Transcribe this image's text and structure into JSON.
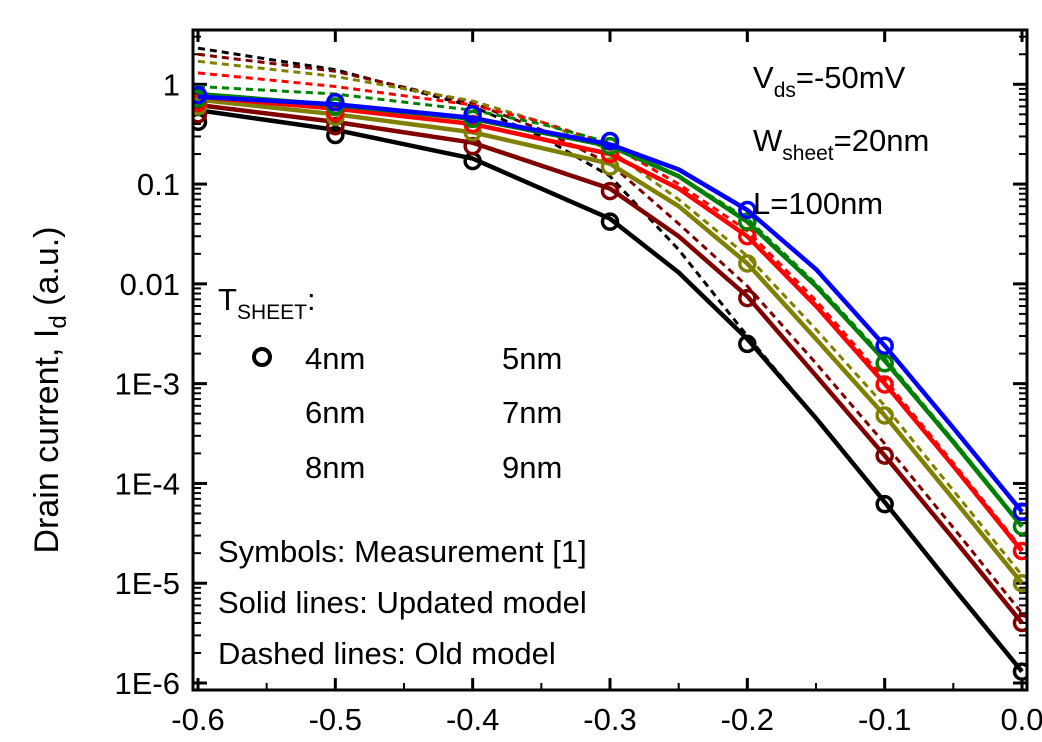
{
  "chart_data": {
    "type": "line",
    "title": "",
    "xlabel": "",
    "ylabel": "Drain current, I",
    "ylabel_sub": "d",
    "ylabel_unit": " (a.u.)",
    "y_scale": "log",
    "xlim": [
      -0.6,
      0.0
    ],
    "ylim": [
      1e-06,
      3.5
    ],
    "x_ticks": [
      -0.6,
      -0.5,
      -0.4,
      -0.3,
      -0.2,
      -0.1,
      0.0
    ],
    "x_tick_labels": [
      "-0.6",
      "-0.5",
      "-0.4",
      "-0.3",
      "-0.2",
      "-0.1",
      "0.0"
    ],
    "y_ticks": [
      1e-06,
      1e-05,
      0.0001,
      0.001,
      0.01,
      0.1,
      1
    ],
    "y_tick_labels": [
      "1E-6",
      "1E-5",
      "1E-4",
      "1E-3",
      "0.01",
      "0.1",
      "1"
    ],
    "grid": false,
    "annotations": {
      "vds_main": "V",
      "vds_sub": "ds",
      "vds_rest": "=-50mV",
      "wsheet_main": "W",
      "wsheet_sub": "sheet",
      "wsheet_rest": "=20nm",
      "length": "L=100nm",
      "tsheet_main": "T",
      "tsheet_sub": "SHEET",
      "tsheet_rest": ":",
      "symbols_note": "Symbols:  Measurement [1]",
      "solid_note": "Solid lines:  Updated model",
      "dashed_note": "Dashed lines: Old model"
    },
    "legend": {
      "placement": "center-left",
      "entries": [
        "4nm",
        "5nm",
        "6nm",
        "7nm",
        "8nm",
        "9nm"
      ]
    },
    "series": [
      {
        "name": "4nm",
        "color": "#000000",
        "x": [
          -0.6,
          -0.5,
          -0.4,
          -0.3,
          -0.2,
          -0.1,
          0.0
        ],
        "measured": [
          0.42,
          0.31,
          0.17,
          0.042,
          0.0025,
          6.2e-05,
          1.3e-06
        ],
        "model_x": [
          -0.6,
          -0.5,
          -0.4,
          -0.3,
          -0.25,
          -0.2,
          -0.15,
          -0.1,
          -0.05,
          0.0
        ],
        "model": [
          0.55,
          0.35,
          0.18,
          0.045,
          0.013,
          0.0028,
          0.00045,
          6.5e-05,
          9e-06,
          1.3e-06
        ],
        "old_x": [
          -0.6,
          -0.5,
          -0.4,
          -0.35,
          -0.3,
          -0.25,
          -0.2,
          -0.15,
          -0.1,
          -0.05,
          0.0
        ],
        "old": [
          2.3,
          1.4,
          0.6,
          0.3,
          0.12,
          0.022,
          0.003,
          0.00045,
          6.5e-05,
          9e-06,
          1.3e-06
        ]
      },
      {
        "name": "5nm",
        "color": "#800000",
        "x": [
          -0.6,
          -0.5,
          -0.4,
          -0.3,
          -0.2,
          -0.1,
          0.0
        ],
        "measured": [
          0.5,
          0.38,
          0.24,
          0.085,
          0.0072,
          0.00019,
          4e-06
        ],
        "model_x": [
          -0.6,
          -0.5,
          -0.4,
          -0.3,
          -0.25,
          -0.2,
          -0.15,
          -0.1,
          -0.05,
          0.0
        ],
        "model": [
          0.62,
          0.42,
          0.26,
          0.09,
          0.03,
          0.0075,
          0.0012,
          0.00019,
          2.8e-05,
          4e-06
        ],
        "old_x": [
          -0.6,
          -0.5,
          -0.4,
          -0.35,
          -0.3,
          -0.25,
          -0.2,
          -0.15,
          -0.1,
          -0.05,
          0.0
        ],
        "old": [
          2.0,
          1.35,
          0.65,
          0.35,
          0.16,
          0.04,
          0.0095,
          0.0016,
          0.00025,
          3.6e-05,
          5e-06
        ]
      },
      {
        "name": "6nm",
        "color": "#808000",
        "x": [
          -0.6,
          -0.5,
          -0.4,
          -0.3,
          -0.2,
          -0.1,
          0.0
        ],
        "measured": [
          0.6,
          0.47,
          0.33,
          0.15,
          0.016,
          0.00048,
          1e-05
        ],
        "model_x": [
          -0.6,
          -0.5,
          -0.4,
          -0.3,
          -0.25,
          -0.2,
          -0.15,
          -0.1,
          -0.05,
          0.0
        ],
        "model": [
          0.7,
          0.5,
          0.33,
          0.16,
          0.06,
          0.016,
          0.0028,
          0.00048,
          7e-05,
          1e-05
        ],
        "old_x": [
          -0.6,
          -0.5,
          -0.4,
          -0.35,
          -0.3,
          -0.25,
          -0.2,
          -0.15,
          -0.1,
          -0.05,
          0.0
        ],
        "old": [
          1.7,
          1.2,
          0.68,
          0.42,
          0.22,
          0.07,
          0.019,
          0.0035,
          0.0006,
          8.5e-05,
          1.2e-05
        ]
      },
      {
        "name": "7nm",
        "color": "#ff0000",
        "x": [
          -0.6,
          -0.5,
          -0.4,
          -0.3,
          -0.2,
          -0.1,
          0.0
        ],
        "measured": [
          0.65,
          0.52,
          0.4,
          0.2,
          0.03,
          0.00098,
          2.1e-05
        ],
        "model_x": [
          -0.6,
          -0.5,
          -0.4,
          -0.3,
          -0.25,
          -0.2,
          -0.15,
          -0.1,
          -0.05,
          0.0
        ],
        "model": [
          0.75,
          0.57,
          0.4,
          0.2,
          0.09,
          0.03,
          0.006,
          0.001,
          0.00015,
          2.1e-05
        ],
        "old_x": [
          -0.6,
          -0.5,
          -0.4,
          -0.35,
          -0.3,
          -0.25,
          -0.2,
          -0.15,
          -0.1,
          -0.05,
          0.0
        ],
        "old": [
          1.3,
          0.95,
          0.62,
          0.42,
          0.25,
          0.1,
          0.034,
          0.0068,
          0.0011,
          0.00016,
          2.2e-05
        ]
      },
      {
        "name": "8nm",
        "color": "#008000",
        "x": [
          -0.6,
          -0.5,
          -0.4,
          -0.3,
          -0.2,
          -0.1,
          0.0
        ],
        "measured": [
          0.72,
          0.6,
          0.45,
          0.24,
          0.042,
          0.0016,
          3.7e-05
        ],
        "model_x": [
          -0.6,
          -0.5,
          -0.4,
          -0.3,
          -0.25,
          -0.2,
          -0.15,
          -0.1,
          -0.05,
          0.0
        ],
        "model": [
          0.8,
          0.62,
          0.45,
          0.24,
          0.12,
          0.042,
          0.0095,
          0.0017,
          0.00026,
          3.7e-05
        ],
        "old_x": [
          -0.6,
          -0.5,
          -0.4,
          -0.35,
          -0.3,
          -0.25,
          -0.2,
          -0.15,
          -0.1,
          -0.05,
          0.0
        ],
        "old": [
          0.95,
          0.8,
          0.55,
          0.4,
          0.26,
          0.12,
          0.045,
          0.01,
          0.0018,
          0.00027,
          3.8e-05
        ]
      },
      {
        "name": "9nm",
        "color": "#0000ff",
        "x": [
          -0.6,
          -0.5,
          -0.4,
          -0.3,
          -0.2,
          -0.1,
          0.0
        ],
        "measured": [
          0.78,
          0.66,
          0.5,
          0.27,
          0.055,
          0.0024,
          5.2e-05
        ],
        "model_x": [
          -0.6,
          -0.5,
          -0.4,
          -0.3,
          -0.25,
          -0.2,
          -0.15,
          -0.1,
          -0.05,
          0.0
        ],
        "model": [
          0.75,
          0.63,
          0.46,
          0.25,
          0.14,
          0.055,
          0.014,
          0.0024,
          0.00036,
          5.2e-05
        ],
        "old_x": [],
        "old": []
      }
    ]
  }
}
